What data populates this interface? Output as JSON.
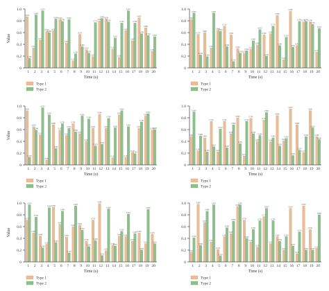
{
  "colors": {
    "type1": "#e9bd98",
    "type2": "#8fbf8f",
    "type1_edge": "#c89a70",
    "type2_edge": "#6a9f6a",
    "axis": "#555555"
  },
  "chart_data": [
    {
      "type": "bar",
      "title": "",
      "xlabel": "Time (s)",
      "ylabel": "Value",
      "ylim": [
        0,
        1.0
      ],
      "yticks": [
        "0",
        "0.2",
        "0.4",
        "0.6",
        "0.8",
        "1.0"
      ],
      "grid": false,
      "legend_position": "bottom-left",
      "categories": [
        "1",
        "2",
        "3",
        "4",
        "5",
        "6",
        "7",
        "8",
        "9",
        "10",
        "11",
        "12",
        "13",
        "14",
        "15",
        "16",
        "17",
        "18",
        "19",
        "20"
      ],
      "series": [
        {
          "name": "Type 1",
          "values": [
            0.87,
            0.34,
            0.47,
            0.62,
            0.63,
            0.82,
            0.42,
            0.12,
            0.57,
            0.31,
            0.19,
            0.8,
            0.83,
            0.32,
            0.18,
            0.63,
            0.46,
            0.85,
            0.68,
            0.28
          ]
        },
        {
          "name": "Type 2",
          "values": [
            0.16,
            0.9,
            0.97,
            0.6,
            0.83,
            0.79,
            0.82,
            0.24,
            0.36,
            0.25,
            0.77,
            0.84,
            0.78,
            0.51,
            0.76,
            0.97,
            0.76,
            0.58,
            0.55,
            0.53
          ]
        }
      ]
    },
    {
      "type": "bar",
      "title": "",
      "xlabel": "Time (s)",
      "ylabel": "",
      "ylim": [
        0,
        1.0
      ],
      "yticks": [
        "0",
        "0.2",
        "0.4",
        "0.6",
        "0.8",
        "1.0"
      ],
      "grid": false,
      "legend_position": "bottom-left",
      "categories": [
        "1",
        "2",
        "3",
        "4",
        "5",
        "6",
        "7",
        "8",
        "9",
        "10",
        "11",
        "12",
        "13",
        "14",
        "15",
        "16",
        "17",
        "18",
        "19",
        "20"
      ],
      "series": [
        {
          "name": "Type 1",
          "values": [
            0.82,
            0.57,
            0.6,
            0.34,
            0.64,
            0.71,
            0.56,
            0.33,
            0.25,
            0.32,
            0.39,
            0.56,
            0.58,
            0.89,
            0.14,
            0.96,
            0.38,
            0.78,
            0.78,
            0.27
          ]
        },
        {
          "name": "Type 2",
          "values": [
            0.93,
            0.22,
            0.19,
            0.93,
            0.62,
            0.36,
            0.11,
            0.25,
            0.29,
            0.46,
            0.65,
            0.2,
            0.71,
            0.38,
            0.52,
            0.35,
            0.79,
            0.79,
            0.74,
            0.67
          ]
        }
      ]
    },
    {
      "type": "bar",
      "title": "",
      "xlabel": "Time (s)",
      "ylabel": "Value",
      "ylim": [
        0,
        1.0
      ],
      "yticks": [
        "0",
        "0.2",
        "0.4",
        "0.6",
        "0.8",
        "1.0"
      ],
      "grid": false,
      "legend_position": "bottom-left",
      "categories": [
        "1",
        "2",
        "3",
        "4",
        "5",
        "6",
        "7",
        "8",
        "9",
        "10",
        "11",
        "12",
        "13",
        "14",
        "15",
        "16",
        "17",
        "18",
        "19",
        "20"
      ],
      "series": [
        {
          "name": "Type 1",
          "values": [
            0.92,
            0.65,
            0.51,
            0.08,
            0.68,
            0.59,
            0.5,
            0.7,
            0.53,
            0.4,
            0.62,
            0.86,
            0.62,
            0.12,
            0.85,
            0.13,
            0.21,
            0.62,
            0.83,
            0.59
          ]
        },
        {
          "name": "Type 2",
          "values": [
            0.13,
            0.59,
            0.97,
            0.85,
            0.28,
            0.7,
            0.62,
            0.56,
            0.83,
            0.78,
            0.32,
            0.35,
            0.79,
            0.63,
            0.92,
            0.65,
            0.19,
            0.73,
            0.87,
            0.6
          ]
        }
      ]
    },
    {
      "type": "bar",
      "title": "",
      "xlabel": "Time (s)",
      "ylabel": "",
      "ylim": [
        0,
        1.0
      ],
      "yticks": [
        "0",
        "0.2",
        "0.4",
        "0.6",
        "0.8",
        "1.0"
      ],
      "grid": false,
      "legend_position": "bottom-left",
      "categories": [
        "1",
        "2",
        "3",
        "4",
        "5",
        "6",
        "7",
        "8",
        "9",
        "10",
        "11",
        "12",
        "13",
        "14",
        "15",
        "16",
        "17",
        "18",
        "19",
        "20"
      ],
      "series": [
        {
          "name": "Type 1",
          "values": [
            0.48,
            0.24,
            0.46,
            0.74,
            0.22,
            0.74,
            0.53,
            0.8,
            0.15,
            0.79,
            0.4,
            0.76,
            0.39,
            0.84,
            0.41,
            0.95,
            0.68,
            0.21,
            0.92,
            0.48
          ]
        },
        {
          "name": "Type 2",
          "values": [
            0.9,
            0.49,
            0.22,
            0.31,
            0.61,
            0.29,
            0.68,
            0.36,
            0.74,
            0.53,
            0.5,
            0.89,
            0.46,
            0.32,
            0.45,
            0.16,
            0.25,
            0.48,
            0.63,
            0.43
          ]
        }
      ]
    },
    {
      "type": "bar",
      "title": "",
      "xlabel": "Time (s)",
      "ylabel": "Value",
      "ylim": [
        0,
        1.0
      ],
      "yticks": [
        "0",
        "0.2",
        "0.4",
        "0.6",
        "0.8",
        "1.0"
      ],
      "grid": false,
      "legend_position": "bottom-left",
      "categories": [
        "1",
        "2",
        "3",
        "4",
        "5",
        "6",
        "7",
        "8",
        "9",
        "10",
        "11",
        "12",
        "13",
        "14",
        "15",
        "16",
        "17",
        "18",
        "19",
        "20"
      ],
      "series": [
        {
          "name": "Type 1",
          "values": [
            0.71,
            0.49,
            0.44,
            0.3,
            0.93,
            0.64,
            0.42,
            0.6,
            0.62,
            0.35,
            0.71,
            0.99,
            0.19,
            0.28,
            0.44,
            0.43,
            0.35,
            0.49,
            0.31,
            0.47
          ]
        },
        {
          "name": "Type 2",
          "values": [
            0.97,
            0.76,
            0.24,
            0.92,
            0.33,
            0.86,
            0.15,
            0.95,
            0.54,
            0.26,
            0.36,
            0.11,
            0.9,
            0.27,
            0.52,
            0.81,
            0.48,
            0.2,
            0.89,
            0.31
          ]
        }
      ]
    },
    {
      "type": "bar",
      "title": "",
      "xlabel": "Time (s)",
      "ylabel": "",
      "ylim": [
        0,
        1.0
      ],
      "yticks": [
        "0",
        "0.2",
        "0.4",
        "0.6",
        "0.8",
        "1.0"
      ],
      "grid": false,
      "legend_position": "bottom-left",
      "categories": [
        "1",
        "2",
        "3",
        "4",
        "5",
        "6",
        "7",
        "8",
        "9",
        "10",
        "11",
        "12",
        "13",
        "14",
        "15",
        "16",
        "17",
        "18",
        "19",
        "20"
      ],
      "series": [
        {
          "name": "Type 1",
          "values": [
            0.16,
            0.98,
            0.67,
            0.34,
            0.21,
            0.43,
            0.48,
            0.94,
            0.71,
            0.34,
            0.25,
            0.77,
            0.31,
            0.43,
            0.2,
            0.91,
            0.14,
            0.95,
            0.55,
            0.23
          ]
        },
        {
          "name": "Type 2",
          "values": [
            0.41,
            0.28,
            0.86,
            0.97,
            0.1,
            0.58,
            0.69,
            0.97,
            0.4,
            0.55,
            0.7,
            0.91,
            0.7,
            0.35,
            0.43,
            0.27,
            0.51,
            0.2,
            0.2,
            0.8
          ]
        }
      ]
    }
  ]
}
